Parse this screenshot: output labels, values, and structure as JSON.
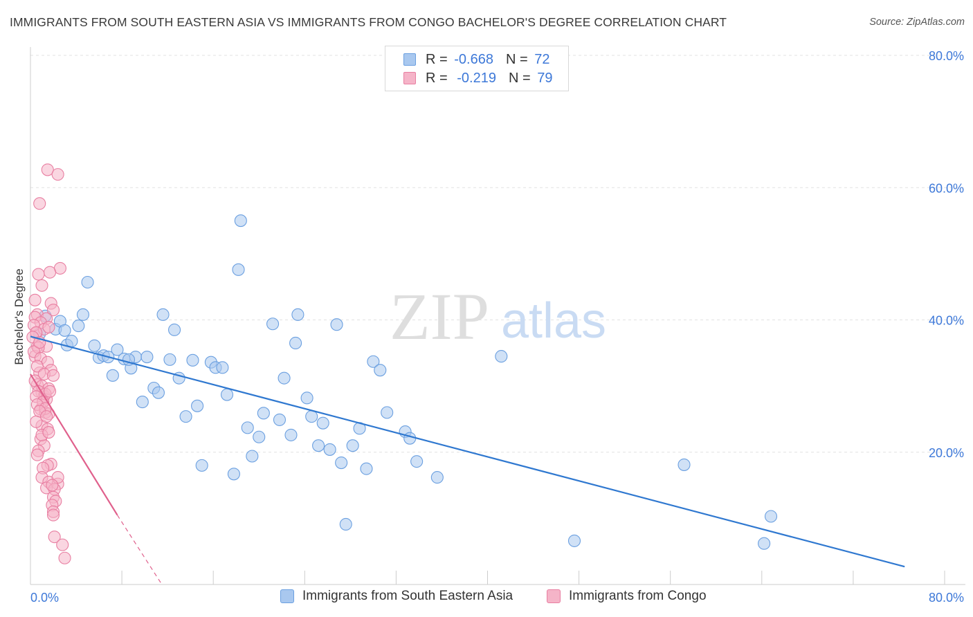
{
  "header": {
    "title": "IMMIGRANTS FROM SOUTH EASTERN ASIA VS IMMIGRANTS FROM CONGO BACHELOR'S DEGREE CORRELATION CHART",
    "source": "Source: ZipAtlas.com"
  },
  "watermark": {
    "zip": "ZIP",
    "atlas": "atlas"
  },
  "legend_top": {
    "rows": [
      {
        "r_label": "R =",
        "r_value": "-0.668",
        "n_label": "N =",
        "n_value": "72"
      },
      {
        "r_label": "R =",
        "r_value": "-0.219",
        "n_label": "N =",
        "n_value": "79"
      }
    ]
  },
  "colors": {
    "blue_fill": "#a9c8ef",
    "blue_stroke": "#6a9fe0",
    "blue_line": "#2f78d0",
    "pink_fill": "#f5b4c8",
    "pink_stroke": "#e87ea1",
    "pink_line": "#e0608c",
    "axis_text": "#3d78d8",
    "grid": "#e2e2e2"
  },
  "chart_data": {
    "type": "scatter",
    "title": "IMMIGRANTS FROM SOUTH EASTERN ASIA VS IMMIGRANTS FROM CONGO BACHELOR'S DEGREE CORRELATION CHART",
    "xlabel": "",
    "ylabel": "Bachelor's Degree",
    "xlim": [
      0,
      80
    ],
    "ylim": [
      0,
      80
    ],
    "x_tick_labels": [
      "0.0%",
      "80.0%"
    ],
    "y_tick_labels": [
      "20.0%",
      "40.0%",
      "60.0%",
      "80.0%"
    ],
    "y_tick_values": [
      20,
      40,
      60,
      80
    ],
    "grid": true,
    "legend_position": "bottom",
    "series": [
      {
        "name": "Immigrants from South Eastern Asia",
        "r": -0.668,
        "n": 72,
        "trend": {
          "x": [
            0,
            76.5
          ],
          "y": [
            37.5,
            2.7
          ]
        },
        "points": [
          [
            0.8,
            37.9
          ],
          [
            1.3,
            40.6
          ],
          [
            2.2,
            38.6
          ],
          [
            2.6,
            39.8
          ],
          [
            3.2,
            36.2
          ],
          [
            3.6,
            36.8
          ],
          [
            4.2,
            39.1
          ],
          [
            4.6,
            40.8
          ],
          [
            5.0,
            45.7
          ],
          [
            5.6,
            36.1
          ],
          [
            6.0,
            34.3
          ],
          [
            6.4,
            34.6
          ],
          [
            7.2,
            31.6
          ],
          [
            7.6,
            35.5
          ],
          [
            8.2,
            34.1
          ],
          [
            8.8,
            32.7
          ],
          [
            9.2,
            34.4
          ],
          [
            9.8,
            27.6
          ],
          [
            10.2,
            34.4
          ],
          [
            10.8,
            29.7
          ],
          [
            11.2,
            29.0
          ],
          [
            11.6,
            40.8
          ],
          [
            12.2,
            34.0
          ],
          [
            12.6,
            38.5
          ],
          [
            13.0,
            31.2
          ],
          [
            13.6,
            25.4
          ],
          [
            14.2,
            33.9
          ],
          [
            14.6,
            27.0
          ],
          [
            15.0,
            18.0
          ],
          [
            15.8,
            33.6
          ],
          [
            16.2,
            32.8
          ],
          [
            16.8,
            32.8
          ],
          [
            17.2,
            28.7
          ],
          [
            17.8,
            16.7
          ],
          [
            18.2,
            47.6
          ],
          [
            18.4,
            55.0
          ],
          [
            19.0,
            23.7
          ],
          [
            19.4,
            19.4
          ],
          [
            20.0,
            22.3
          ],
          [
            20.4,
            25.9
          ],
          [
            21.2,
            39.4
          ],
          [
            21.8,
            24.9
          ],
          [
            22.2,
            31.2
          ],
          [
            22.8,
            22.6
          ],
          [
            23.2,
            36.5
          ],
          [
            23.4,
            40.8
          ],
          [
            24.2,
            28.2
          ],
          [
            24.6,
            25.4
          ],
          [
            25.2,
            21.0
          ],
          [
            25.6,
            24.4
          ],
          [
            26.2,
            20.4
          ],
          [
            26.8,
            39.3
          ],
          [
            27.2,
            18.4
          ],
          [
            27.6,
            9.1
          ],
          [
            28.2,
            21.0
          ],
          [
            28.8,
            23.6
          ],
          [
            29.4,
            17.5
          ],
          [
            30.0,
            33.7
          ],
          [
            30.6,
            32.4
          ],
          [
            31.2,
            26.0
          ],
          [
            32.8,
            23.1
          ],
          [
            33.2,
            22.1
          ],
          [
            33.8,
            18.6
          ],
          [
            35.6,
            16.2
          ],
          [
            41.2,
            34.5
          ],
          [
            47.6,
            6.6
          ],
          [
            57.2,
            18.1
          ],
          [
            64.8,
            10.3
          ],
          [
            64.2,
            6.2
          ],
          [
            3.0,
            38.4
          ],
          [
            6.8,
            34.4
          ],
          [
            8.6,
            34.0
          ]
        ]
      },
      {
        "name": "Immigrants from Congo",
        "r": -0.219,
        "n": 79,
        "trend": {
          "x": [
            0,
            7.6
          ],
          "y": [
            31.8,
            10.5
          ]
        },
        "trend_dashed": {
          "x": [
            7.6,
            11.5
          ],
          "y": [
            10.5,
            0
          ]
        },
        "points": [
          [
            0.5,
            38.0
          ],
          [
            0.6,
            36.0
          ],
          [
            0.4,
            34.5
          ],
          [
            0.8,
            32.0
          ],
          [
            0.6,
            30.2
          ],
          [
            1.0,
            29.0
          ],
          [
            1.2,
            28.5
          ],
          [
            1.4,
            28.0
          ],
          [
            0.9,
            26.5
          ],
          [
            1.3,
            26.0
          ],
          [
            1.6,
            25.8
          ],
          [
            1.0,
            24.0
          ],
          [
            1.5,
            23.5
          ],
          [
            0.9,
            22.0
          ],
          [
            1.2,
            21.0
          ],
          [
            0.7,
            20.2
          ],
          [
            1.8,
            18.2
          ],
          [
            1.5,
            18.0
          ],
          [
            1.1,
            17.6
          ],
          [
            1.0,
            16.2
          ],
          [
            1.6,
            15.5
          ],
          [
            2.4,
            15.2
          ],
          [
            1.4,
            14.6
          ],
          [
            2.1,
            14.4
          ],
          [
            2.0,
            13.2
          ],
          [
            2.2,
            12.6
          ],
          [
            1.9,
            12.0
          ],
          [
            2.0,
            11.0
          ],
          [
            2.0,
            10.5
          ],
          [
            1.5,
            62.7
          ],
          [
            2.4,
            62.0
          ],
          [
            0.8,
            57.6
          ],
          [
            2.6,
            47.8
          ],
          [
            1.7,
            47.2
          ],
          [
            0.7,
            46.9
          ],
          [
            1.0,
            45.2
          ],
          [
            0.4,
            43.0
          ],
          [
            1.8,
            42.5
          ],
          [
            2.0,
            41.5
          ],
          [
            0.6,
            40.8
          ],
          [
            0.4,
            40.4
          ],
          [
            1.4,
            40.2
          ],
          [
            0.9,
            39.6
          ],
          [
            0.3,
            39.2
          ],
          [
            1.2,
            38.6
          ],
          [
            1.6,
            38.9
          ],
          [
            0.5,
            38.1
          ],
          [
            0.2,
            37.4
          ],
          [
            1.4,
            36.0
          ],
          [
            0.7,
            35.8
          ],
          [
            0.3,
            35.2
          ],
          [
            0.9,
            34.2
          ],
          [
            1.5,
            33.6
          ],
          [
            0.6,
            33.0
          ],
          [
            1.8,
            32.4
          ],
          [
            1.2,
            31.8
          ],
          [
            2.0,
            31.6
          ],
          [
            0.4,
            30.8
          ],
          [
            1.0,
            30.0
          ],
          [
            1.6,
            29.6
          ],
          [
            0.7,
            29.2
          ],
          [
            1.3,
            28.8
          ],
          [
            0.5,
            28.4
          ],
          [
            1.1,
            27.6
          ],
          [
            0.6,
            27.2
          ],
          [
            1.3,
            26.6
          ],
          [
            0.8,
            26.2
          ],
          [
            1.4,
            25.4
          ],
          [
            0.5,
            24.6
          ],
          [
            2.1,
            7.2
          ],
          [
            2.8,
            6.0
          ],
          [
            3.0,
            4.0
          ],
          [
            1.0,
            22.6
          ],
          [
            0.6,
            19.6
          ],
          [
            1.6,
            23.0
          ],
          [
            2.4,
            16.2
          ],
          [
            1.9,
            15.0
          ],
          [
            0.8,
            36.6
          ],
          [
            1.7,
            29.2
          ]
        ]
      }
    ]
  },
  "bottom_legend": {
    "items": [
      {
        "label": "Immigrants from South Eastern Asia"
      },
      {
        "label": "Immigrants from Congo"
      }
    ]
  }
}
